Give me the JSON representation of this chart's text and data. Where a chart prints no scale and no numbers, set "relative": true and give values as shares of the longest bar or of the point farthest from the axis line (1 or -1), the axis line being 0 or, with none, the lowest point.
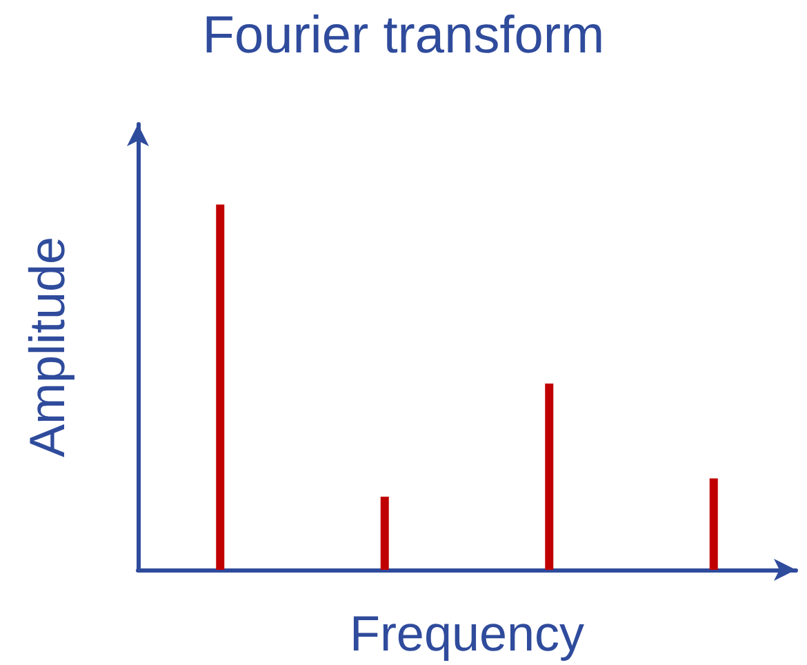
{
  "chart_data": {
    "type": "bar",
    "title": "Fourier transform",
    "xlabel": "Frequency",
    "ylabel": "Amplitude",
    "relative": true,
    "grid": false,
    "color": "#c00000",
    "categories": [
      null,
      null,
      null,
      null
    ],
    "values": [
      1,
      0.2,
      0.51,
      0.25
    ]
  }
}
